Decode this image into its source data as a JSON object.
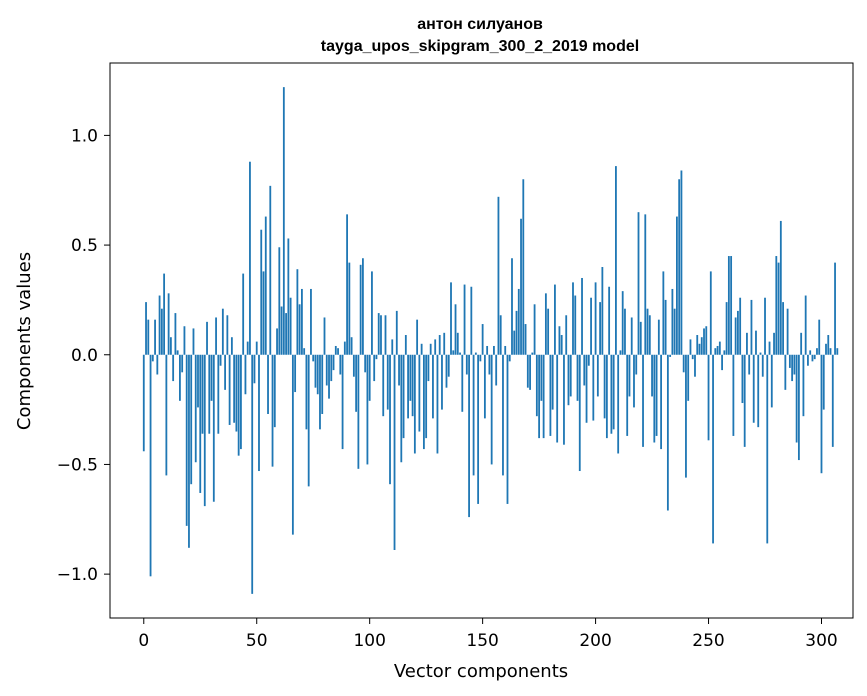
{
  "chart_data": {
    "type": "bar",
    "title_line1": "антон силуанов",
    "title_line2": "tayga_upos_skipgram_300_2_2019 model",
    "xlabel": "Vector components",
    "ylabel": "Components values",
    "xlim": [
      -14.95,
      313.95
    ],
    "ylim": [
      -1.2,
      1.33
    ],
    "x_ticks": [
      0,
      50,
      100,
      150,
      200,
      250,
      300
    ],
    "y_ticks": [
      1.0,
      0.5,
      0.0,
      -0.5,
      -1.0
    ],
    "x_tick_labels": [
      "0",
      "50",
      "100",
      "150",
      "200",
      "250",
      "300"
    ],
    "y_tick_labels": [
      "1.0",
      "0.5",
      "0.0",
      "−0.5",
      "−1.0"
    ],
    "bar_color": "#1f77b4",
    "values": [
      -0.44,
      0.24,
      0.16,
      -1.01,
      -0.03,
      0.16,
      -0.09,
      0.27,
      0.21,
      0.37,
      -0.55,
      0.28,
      0.08,
      -0.12,
      0.19,
      0.02,
      -0.21,
      -0.08,
      0.13,
      -0.78,
      -0.88,
      -0.59,
      0.12,
      -0.49,
      -0.24,
      -0.63,
      -0.36,
      -0.69,
      0.15,
      -0.36,
      -0.21,
      -0.67,
      0.17,
      -0.36,
      -0.05,
      0.21,
      -0.16,
      0.18,
      -0.32,
      0.08,
      -0.31,
      -0.35,
      -0.46,
      -0.43,
      0.37,
      -0.18,
      0.06,
      0.88,
      -1.09,
      -0.13,
      0.06,
      -0.53,
      0.57,
      0.38,
      0.63,
      -0.27,
      0.77,
      -0.51,
      -0.33,
      0.12,
      0.49,
      0.22,
      1.22,
      0.19,
      0.53,
      0.26,
      -0.82,
      -0.17,
      0.39,
      0.23,
      0.3,
      0.03,
      -0.34,
      -0.6,
      0.3,
      -0.03,
      -0.15,
      -0.18,
      -0.34,
      -0.27,
      0.17,
      -0.14,
      -0.2,
      -0.12,
      -0.07,
      0.04,
      0.03,
      -0.09,
      -0.43,
      0.06,
      0.64,
      0.42,
      0.08,
      -0.1,
      -0.26,
      -0.52,
      0.41,
      0.44,
      -0.08,
      -0.5,
      -0.21,
      0.38,
      -0.12,
      -0.02,
      0.19,
      0.18,
      -0.28,
      0.18,
      -0.25,
      -0.59,
      0.07,
      -0.89,
      0.2,
      -0.14,
      -0.49,
      -0.38,
      0.09,
      -0.29,
      -0.21,
      -0.28,
      -0.45,
      0.16,
      -0.35,
      0.05,
      -0.43,
      -0.38,
      -0.12,
      0.05,
      -0.29,
      0.07,
      -0.45,
      0.09,
      -0.25,
      0.1,
      -0.15,
      -0.1,
      0.33,
      0.02,
      0.23,
      0.1,
      0.01,
      -0.26,
      0.32,
      -0.09,
      -0.74,
      0.31,
      -0.55,
      0.01,
      -0.68,
      -0.03,
      0.14,
      -0.29,
      0.04,
      -0.09,
      -0.5,
      0.04,
      -0.14,
      0.72,
      0.18,
      -0.55,
      0.04,
      -0.68,
      -0.03,
      0.44,
      0.11,
      0.2,
      0.3,
      0.62,
      0.8,
      0.14,
      -0.15,
      -0.16,
      0.01,
      0.23,
      -0.28,
      -0.38,
      -0.21,
      -0.38,
      0.28,
      0.21,
      -0.37,
      -0.25,
      0.32,
      -0.4,
      0.13,
      0.09,
      -0.41,
      0.18,
      -0.23,
      -0.19,
      0.33,
      0.27,
      -0.21,
      -0.53,
      0.35,
      -0.14,
      -0.31,
      -0.05,
      0.26,
      -0.3,
      0.33,
      -0.19,
      0.24,
      0.4,
      -0.29,
      -0.38,
      0.31,
      -0.36,
      -0.34,
      0.86,
      -0.45,
      0.02,
      0.29,
      0.21,
      -0.37,
      -0.19,
      0.17,
      -0.24,
      -0.09,
      0.65,
      0.15,
      -0.42,
      0.64,
      0.21,
      0.18,
      -0.19,
      -0.4,
      -0.37,
      0.16,
      -0.43,
      0.38,
      0.25,
      -0.71,
      -0.01,
      0.3,
      0.21,
      0.63,
      0.8,
      0.84,
      -0.08,
      -0.56,
      -0.21,
      0.07,
      -0.02,
      -0.1,
      0.09,
      0.05,
      0.08,
      0.12,
      0.13,
      -0.39,
      0.38,
      -0.86,
      0.03,
      0.04,
      0.06,
      -0.07,
      0.02,
      0.24,
      0.45,
      0.45,
      -0.37,
      0.17,
      0.2,
      0.26,
      -0.22,
      -0.42,
      0.1,
      -0.09,
      0.25,
      -0.31,
      0.11,
      -0.33,
      0.01,
      -0.1,
      0.26,
      -0.86,
      0.06,
      -0.24,
      0.1,
      0.45,
      0.42,
      0.61,
      0.24,
      -0.16,
      0.21,
      -0.06,
      -0.12,
      -0.09,
      -0.4,
      -0.48,
      0.1,
      -0.28,
      0.27,
      -0.05,
      0.02,
      -0.03,
      -0.02,
      0.03,
      0.16,
      -0.54,
      -0.25,
      0.05,
      0.09,
      0.03,
      -0.42,
      0.42,
      0.03
    ]
  }
}
